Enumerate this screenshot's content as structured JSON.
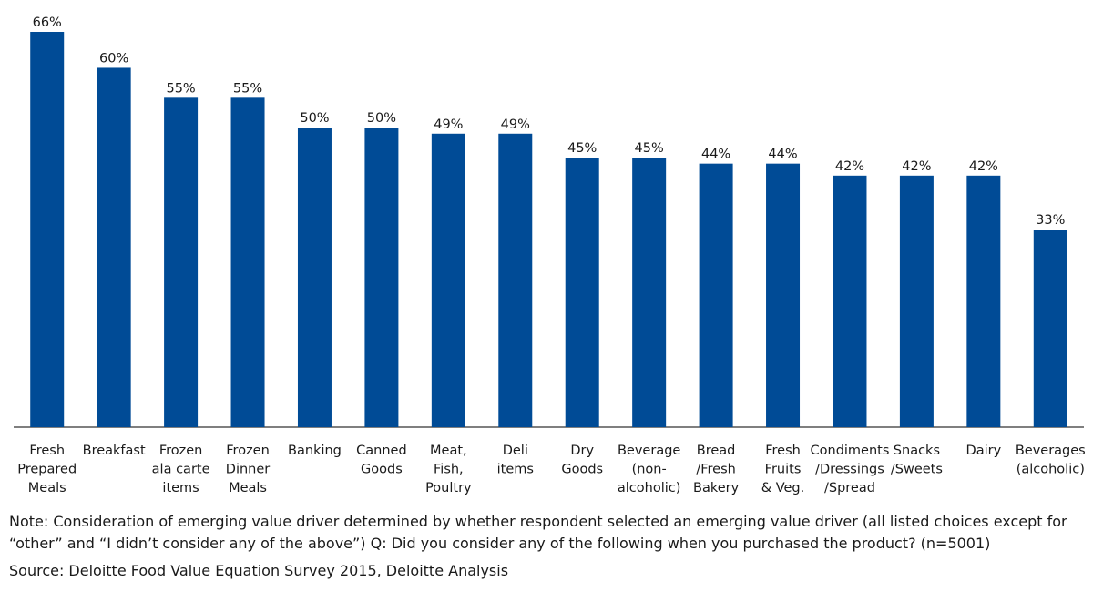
{
  "chart_data": {
    "type": "bar",
    "categories": [
      [
        "Fresh",
        "Prepared",
        "Meals"
      ],
      [
        "Breakfast"
      ],
      [
        "Frozen",
        "ala carte",
        "items"
      ],
      [
        "Frozen",
        "Dinner",
        "Meals"
      ],
      [
        "Banking"
      ],
      [
        "Canned",
        "Goods"
      ],
      [
        "Meat,",
        "Fish,",
        "Poultry"
      ],
      [
        "Deli",
        "items"
      ],
      [
        "Dry",
        "Goods"
      ],
      [
        "Beverage",
        "(non-",
        "alcoholic)"
      ],
      [
        "Bread",
        "/Fresh",
        "Bakery"
      ],
      [
        "Fresh",
        "Fruits",
        "& Veg."
      ],
      [
        "Condiments",
        "/Dressings",
        "/Spread"
      ],
      [
        "Snacks",
        "/Sweets"
      ],
      [
        "Dairy"
      ],
      [
        "Beverages",
        "(alcoholic)"
      ]
    ],
    "values": [
      66,
      60,
      55,
      55,
      50,
      50,
      49,
      49,
      45,
      45,
      44,
      44,
      42,
      42,
      42,
      33
    ],
    "value_labels": [
      "66%",
      "60%",
      "55%",
      "55%",
      "50%",
      "50%",
      "49%",
      "49%",
      "45%",
      "45%",
      "44%",
      "44%",
      "42%",
      "42%",
      "42%",
      "33%"
    ],
    "unit": "%",
    "ylim": [
      0,
      66
    ],
    "bar_color": "#004B96",
    "axis_color": "#555555",
    "grid": false,
    "legend": "none"
  },
  "note": "Note: Consideration of emerging value driver determined by whether respondent selected an emerging value driver (all listed choices except for “other” and “I didn’t consider any of the above”) Q: Did you consider any of the following when you purchased the product? (n=5001)",
  "source": "Source: Deloitte Food Value Equation Survey 2015, Deloitte Analysis"
}
